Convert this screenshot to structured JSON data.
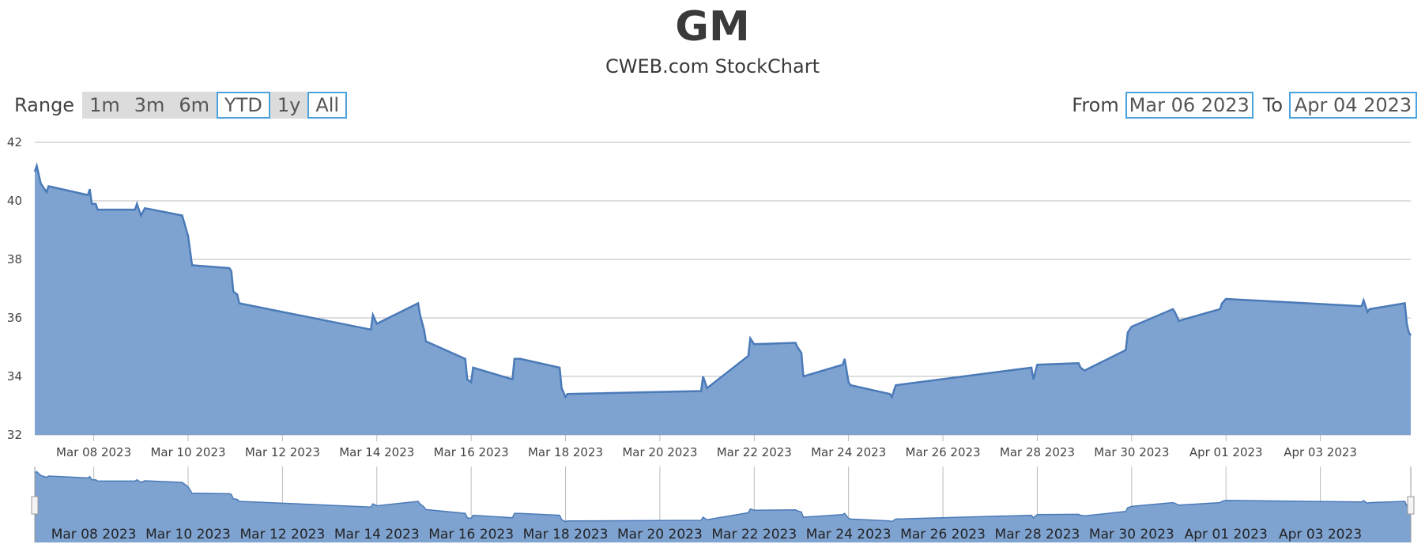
{
  "header": {
    "title": "GM",
    "subtitle": "CWEB.com StockChart"
  },
  "range_selector": {
    "label": "Range",
    "buttons": [
      {
        "label": "1m",
        "selected": false
      },
      {
        "label": "3m",
        "selected": false
      },
      {
        "label": "6m",
        "selected": false
      },
      {
        "label": "YTD",
        "selected": true
      },
      {
        "label": "1y",
        "selected": false
      },
      {
        "label": "All",
        "selected": true
      }
    ]
  },
  "date_range": {
    "from_label": "From",
    "from_value": "Mar 06 2023",
    "to_label": "To",
    "to_value": "Apr 04 2023"
  },
  "colors": {
    "area_fill": "#7fa3d1",
    "line": "#4a7ab8",
    "accent": "#4aa3df",
    "grid": "#bdbdbd"
  },
  "chart_data": {
    "type": "area",
    "ylim": [
      32,
      42
    ],
    "yticks": [
      32,
      34,
      36,
      38,
      40,
      42
    ],
    "xlim": [
      "2023-03-06T18:00",
      "2023-04-04T22:00"
    ],
    "xticks": [
      "Mar 08 2023",
      "Mar 10 2023",
      "Mar 12 2023",
      "Mar 14 2023",
      "Mar 16 2023",
      "Mar 18 2023",
      "Mar 20 2023",
      "Mar 22 2023",
      "Mar 24 2023",
      "Mar 26 2023",
      "Mar 28 2023",
      "Mar 30 2023",
      "Apr 01 2023",
      "Apr 03 2023"
    ],
    "xtick_dates": [
      "2023-03-08",
      "2023-03-10",
      "2023-03-12",
      "2023-03-14",
      "2023-03-16",
      "2023-03-18",
      "2023-03-20",
      "2023-03-22",
      "2023-03-24",
      "2023-03-26",
      "2023-03-28",
      "2023-03-30",
      "2023-04-01",
      "2023-04-03"
    ],
    "grid": true,
    "series": [
      {
        "values": [
          [
            "2023-03-06T18:00",
            41.0
          ],
          [
            "2023-03-06T19:00",
            41.2
          ],
          [
            "2023-03-06T21:00",
            40.6
          ],
          [
            "2023-03-07T00:00",
            40.3
          ],
          [
            "2023-03-07T01:00",
            40.5
          ],
          [
            "2023-03-07T21:00",
            40.2
          ],
          [
            "2023-03-07T22:00",
            40.4
          ],
          [
            "2023-03-07T23:00",
            39.9
          ],
          [
            "2023-03-08T01:00",
            39.9
          ],
          [
            "2023-03-08T02:00",
            39.7
          ],
          [
            "2023-03-08T21:00",
            39.7
          ],
          [
            "2023-03-08T22:00",
            39.9
          ],
          [
            "2023-03-09T00:00",
            39.5
          ],
          [
            "2023-03-09T02:00",
            39.75
          ],
          [
            "2023-03-09T21:00",
            39.5
          ],
          [
            "2023-03-10T00:00",
            38.8
          ],
          [
            "2023-03-10T02:00",
            37.8
          ],
          [
            "2023-03-10T21:00",
            37.7
          ],
          [
            "2023-03-10T22:00",
            37.6
          ],
          [
            "2023-03-10T23:00",
            36.9
          ],
          [
            "2023-03-11T01:00",
            36.8
          ],
          [
            "2023-03-11T02:00",
            36.5
          ],
          [
            "2023-03-13T21:00",
            35.6
          ],
          [
            "2023-03-13T22:00",
            36.1
          ],
          [
            "2023-03-14T00:00",
            35.8
          ],
          [
            "2023-03-14T21:00",
            36.5
          ],
          [
            "2023-03-14T22:00",
            36.1
          ],
          [
            "2023-03-15T00:00",
            35.6
          ],
          [
            "2023-03-15T01:00",
            35.2
          ],
          [
            "2023-03-15T21:00",
            34.6
          ],
          [
            "2023-03-15T22:00",
            33.9
          ],
          [
            "2023-03-16T00:00",
            33.8
          ],
          [
            "2023-03-16T01:00",
            34.3
          ],
          [
            "2023-03-16T21:00",
            33.9
          ],
          [
            "2023-03-16T22:00",
            34.6
          ],
          [
            "2023-03-17T01:00",
            34.6
          ],
          [
            "2023-03-17T21:00",
            34.3
          ],
          [
            "2023-03-17T22:00",
            33.6
          ],
          [
            "2023-03-18T00:00",
            33.3
          ],
          [
            "2023-03-18T01:00",
            33.4
          ],
          [
            "2023-03-20T21:00",
            33.5
          ],
          [
            "2023-03-20T22:00",
            34.0
          ],
          [
            "2023-03-21T00:00",
            33.6
          ],
          [
            "2023-03-21T21:00",
            34.7
          ],
          [
            "2023-03-21T22:00",
            35.3
          ],
          [
            "2023-03-22T00:00",
            35.1
          ],
          [
            "2023-03-22T21:00",
            35.15
          ],
          [
            "2023-03-22T22:00",
            35.0
          ],
          [
            "2023-03-23T00:00",
            34.8
          ],
          [
            "2023-03-23T01:00",
            34.0
          ],
          [
            "2023-03-23T21:00",
            34.4
          ],
          [
            "2023-03-23T22:00",
            34.6
          ],
          [
            "2023-03-24T00:00",
            33.8
          ],
          [
            "2023-03-24T01:00",
            33.7
          ],
          [
            "2023-03-24T21:00",
            33.4
          ],
          [
            "2023-03-24T22:00",
            33.3
          ],
          [
            "2023-03-25T00:00",
            33.7
          ],
          [
            "2023-03-27T21:00",
            34.3
          ],
          [
            "2023-03-27T22:00",
            33.9
          ],
          [
            "2023-03-28T00:00",
            34.4
          ],
          [
            "2023-03-28T21:00",
            34.45
          ],
          [
            "2023-03-28T22:00",
            34.3
          ],
          [
            "2023-03-29T00:00",
            34.2
          ],
          [
            "2023-03-29T21:00",
            34.9
          ],
          [
            "2023-03-29T22:00",
            35.5
          ],
          [
            "2023-03-30T00:00",
            35.7
          ],
          [
            "2023-03-30T21:00",
            36.3
          ],
          [
            "2023-03-30T22:00",
            36.2
          ],
          [
            "2023-03-31T00:00",
            35.9
          ],
          [
            "2023-03-31T21:00",
            36.3
          ],
          [
            "2023-03-31T22:00",
            36.5
          ],
          [
            "2023-04-01T00:00",
            36.65
          ],
          [
            "2023-04-03T21:00",
            36.4
          ],
          [
            "2023-04-03T22:00",
            36.6
          ],
          [
            "2023-04-04T00:00",
            36.2
          ],
          [
            "2023-04-04T01:00",
            36.3
          ],
          [
            "2023-04-04T19:00",
            36.5
          ],
          [
            "2023-04-04T20:00",
            35.8
          ],
          [
            "2023-04-04T21:00",
            35.5
          ],
          [
            "2023-04-04T22:00",
            35.4
          ]
        ]
      }
    ]
  }
}
